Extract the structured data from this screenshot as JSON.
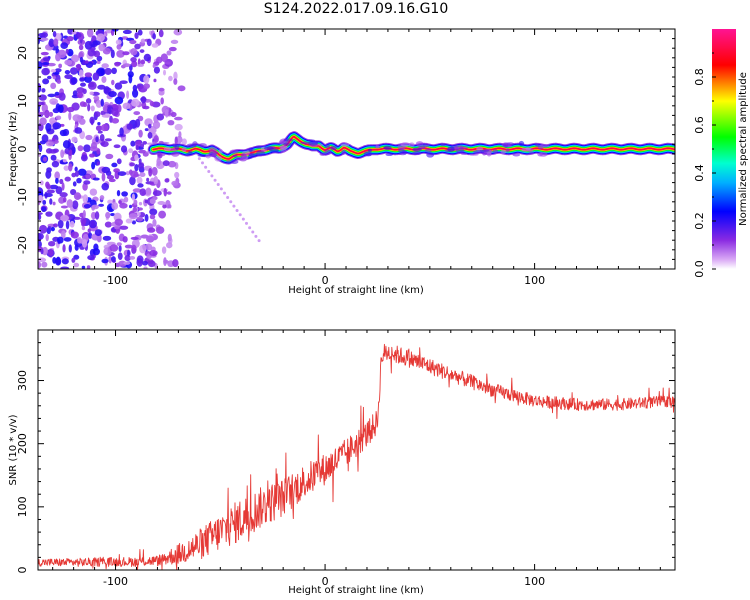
{
  "title": "S124.2022.017.09.16.G10",
  "chart_data": [
    {
      "type": "heatmap",
      "name": "spectrogram",
      "xlabel": "Height of straight line (km)",
      "ylabel": "Frequency (Hz)",
      "xlim": [
        -137,
        167
      ],
      "ylim": [
        -25,
        25
      ],
      "x_ticks": [
        -100,
        0,
        100
      ],
      "x_tick_labels": [
        "-100",
        "0",
        "100"
      ],
      "y_ticks": [
        -20,
        -10,
        0,
        10,
        20
      ],
      "y_tick_labels": [
        "-20",
        "-10",
        "0",
        "10",
        "20"
      ],
      "colorbar": {
        "label": "Normalized spectral amplitude",
        "range": [
          0,
          1
        ],
        "ticks": [
          0.0,
          0.2,
          0.4,
          0.6,
          0.8
        ],
        "tick_labels": [
          "0.0",
          "0.2",
          "0.4",
          "0.6",
          "0.8"
        ],
        "colors": [
          "#ffffff",
          "#8a2be2",
          "#0000ff",
          "#00ffff",
          "#00ff00",
          "#ffff00",
          "#ff0000",
          "#ff1493"
        ]
      },
      "ridge": {
        "x": [
          -82,
          -78,
          -72,
          -66,
          -62,
          -58,
          -54,
          -50,
          -46,
          -42,
          -38,
          -34,
          -30,
          -26,
          -22,
          -18,
          -15,
          -12,
          -9,
          -6,
          -3,
          0,
          3,
          6,
          9,
          12,
          16,
          20,
          24,
          28,
          40,
          60,
          80,
          100,
          120,
          140,
          167
        ],
        "y": [
          0,
          0,
          0,
          -0.3,
          0,
          -0.5,
          -0.2,
          -1.5,
          -2,
          -1.3,
          -1,
          -0.8,
          -0.2,
          0,
          0.2,
          1,
          2.5,
          1.8,
          1,
          0.5,
          0.8,
          -0.3,
          0.2,
          -0.4,
          0.3,
          -0.5,
          -0.8,
          -0.4,
          0,
          0,
          0,
          0,
          0,
          0,
          0,
          0,
          0
        ],
        "amplitude": [
          0.35,
          0.55,
          0.7,
          0.6,
          0.7,
          0.75,
          0.6,
          0.55,
          0.5,
          0.45,
          0.8,
          0.7,
          0.85,
          0.8,
          0.85,
          0.9,
          0.95,
          0.9,
          0.9,
          0.85,
          0.85,
          0.9,
          0.85,
          0.8,
          0.9,
          0.85,
          0.9,
          0.9,
          0.95,
          1.0,
          1.0,
          1.0,
          1.0,
          1.0,
          1.0,
          1.0,
          1.0
        ]
      }
    },
    {
      "type": "line",
      "name": "snr",
      "xlabel": "Height of straight line (km)",
      "ylabel": "SNR (10 * v/v)",
      "xlim": [
        -137,
        167
      ],
      "ylim": [
        0,
        380
      ],
      "x_ticks": [
        -100,
        0,
        100
      ],
      "x_tick_labels": [
        "-100",
        "0",
        "100"
      ],
      "y_ticks": [
        0,
        100,
        200,
        300
      ],
      "y_tick_labels": [
        "0",
        "100",
        "200",
        "300"
      ],
      "color": "#e53935",
      "trend": {
        "x": [
          -137,
          -120,
          -100,
          -90,
          -80,
          -70,
          -60,
          -50,
          -40,
          -30,
          -20,
          -10,
          0,
          10,
          20,
          25,
          27,
          30,
          40,
          60,
          80,
          100,
          120,
          140,
          167
        ],
        "y": [
          12,
          12,
          13,
          13,
          15,
          25,
          40,
          60,
          80,
          100,
          115,
          140,
          160,
          185,
          215,
          235,
          340,
          345,
          335,
          310,
          285,
          268,
          262,
          262,
          268
        ]
      },
      "noise_amplitude": {
        "x": [
          -137,
          -80,
          -60,
          -40,
          -20,
          0,
          25,
          30,
          60,
          100,
          167
        ],
        "y": [
          6,
          8,
          25,
          35,
          30,
          25,
          20,
          15,
          12,
          10,
          9
        ]
      }
    }
  ]
}
